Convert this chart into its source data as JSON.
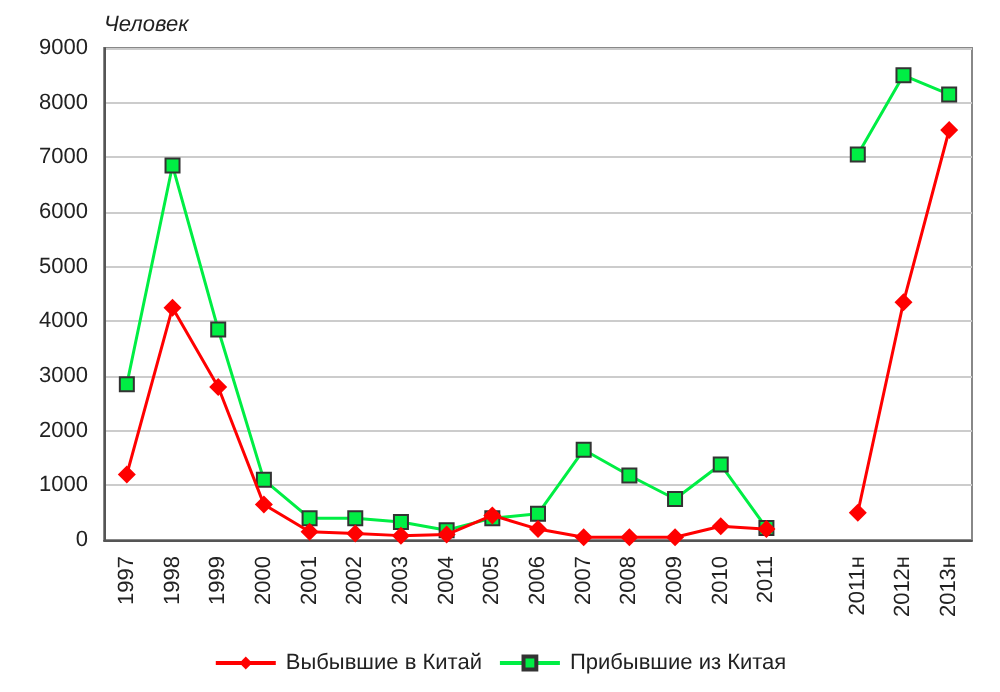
{
  "chart_data": {
    "type": "line",
    "ylabel": "Человек",
    "categories": [
      "1997",
      "1998",
      "1999",
      "2000",
      "2001",
      "2002",
      "2003",
      "2004",
      "2005",
      "2006",
      "2007",
      "2008",
      "2009",
      "2010",
      "2011",
      null,
      "2011н",
      "2012н",
      "2013н"
    ],
    "series": [
      {
        "name": "Выбывшие в Китай",
        "color": "#ff0000",
        "marker": "diamond",
        "values": [
          1200,
          4250,
          2800,
          650,
          150,
          120,
          80,
          100,
          450,
          200,
          50,
          50,
          50,
          250,
          200,
          null,
          500,
          4350,
          7500
        ]
      },
      {
        "name": "Прибывшие из Китая",
        "color": "#00ee44",
        "marker": "square",
        "values": [
          2850,
          6850,
          3850,
          1100,
          400,
          400,
          330,
          180,
          400,
          480,
          1650,
          1180,
          750,
          1380,
          220,
          null,
          7050,
          8500,
          8150
        ]
      }
    ],
    "ylim": [
      0,
      9000
    ],
    "yticks": [
      0,
      1000,
      2000,
      3000,
      4000,
      5000,
      6000,
      7000,
      8000,
      9000
    ],
    "grid": "y",
    "legend": "bottom"
  }
}
